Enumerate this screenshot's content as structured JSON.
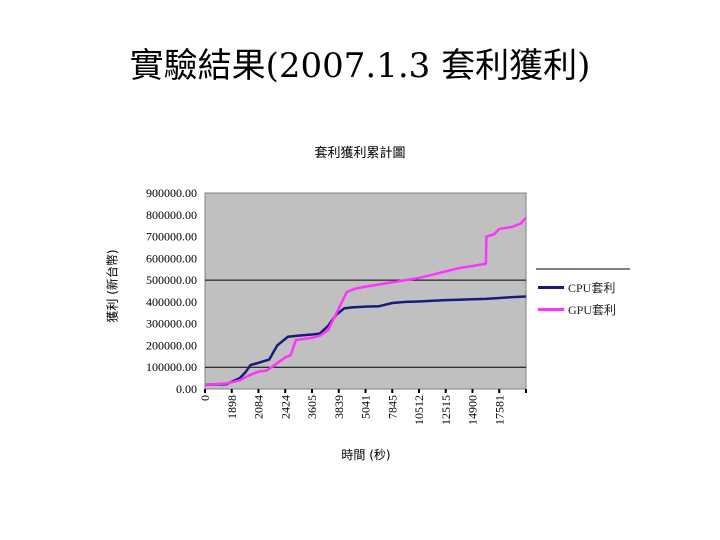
{
  "slide": {
    "title": "實驗結果(2007.1.3 套利獲利)"
  },
  "chart_data": {
    "type": "line",
    "title": "套利獲利累計圖",
    "xlabel": "時間 (秒)",
    "ylabel": "獲利 (新台幣)",
    "x_tick_labels": [
      "0",
      "1898",
      "2084",
      "2424",
      "3605",
      "3839",
      "5041",
      "7845",
      "10512",
      "12515",
      "14900",
      "17581"
    ],
    "y_tick_labels": [
      "0.00",
      "100000.00",
      "200000.00",
      "300000.00",
      "400000.00",
      "500000.00",
      "600000.00",
      "700000.00",
      "800000.00",
      "900000.00"
    ],
    "ylim": [
      0,
      900000
    ],
    "gridlines_y": [
      100000,
      500000
    ],
    "background": "#c0c0c0",
    "legend_position": "right",
    "series": [
      {
        "name": "CPU套利",
        "color": "#1a1a7a",
        "points": [
          [
            0,
            20000
          ],
          [
            0.8,
            22000
          ],
          [
            1.3,
            50000
          ],
          [
            1.5,
            75000
          ],
          [
            1.7,
            110000
          ],
          [
            2.0,
            120000
          ],
          [
            2.4,
            135000
          ],
          [
            2.7,
            200000
          ],
          [
            3.1,
            240000
          ],
          [
            3.5,
            245000
          ],
          [
            4.0,
            250000
          ],
          [
            4.3,
            255000
          ],
          [
            4.6,
            290000
          ],
          [
            4.9,
            340000
          ],
          [
            5.2,
            370000
          ],
          [
            5.5,
            375000
          ],
          [
            6.0,
            378000
          ],
          [
            6.5,
            380000
          ],
          [
            7.0,
            395000
          ],
          [
            7.5,
            400000
          ],
          [
            8.0,
            402000
          ],
          [
            8.5,
            405000
          ],
          [
            9.0,
            408000
          ],
          [
            9.5,
            410000
          ],
          [
            10.0,
            412000
          ],
          [
            10.5,
            414000
          ],
          [
            11.0,
            418000
          ],
          [
            11.5,
            422000
          ],
          [
            12.0,
            425000
          ]
        ]
      },
      {
        "name": "GPU套利",
        "color": "#ff33ff",
        "points": [
          [
            0,
            20000
          ],
          [
            0.8,
            25000
          ],
          [
            1.3,
            40000
          ],
          [
            1.6,
            60000
          ],
          [
            2.0,
            80000
          ],
          [
            2.3,
            85000
          ],
          [
            2.6,
            110000
          ],
          [
            3.0,
            145000
          ],
          [
            3.2,
            155000
          ],
          [
            3.4,
            225000
          ],
          [
            3.7,
            230000
          ],
          [
            4.0,
            235000
          ],
          [
            4.3,
            245000
          ],
          [
            4.6,
            270000
          ],
          [
            5.0,
            370000
          ],
          [
            5.3,
            445000
          ],
          [
            5.6,
            460000
          ],
          [
            6.0,
            470000
          ],
          [
            6.5,
            480000
          ],
          [
            7.0,
            490000
          ],
          [
            7.5,
            500000
          ],
          [
            8.0,
            510000
          ],
          [
            8.5,
            525000
          ],
          [
            9.0,
            540000
          ],
          [
            9.5,
            555000
          ],
          [
            10.0,
            565000
          ],
          [
            10.5,
            575000
          ],
          [
            10.52,
            700000
          ],
          [
            10.8,
            710000
          ],
          [
            11.0,
            735000
          ],
          [
            11.5,
            745000
          ],
          [
            11.8,
            760000
          ],
          [
            12.0,
            785000
          ]
        ]
      }
    ]
  }
}
